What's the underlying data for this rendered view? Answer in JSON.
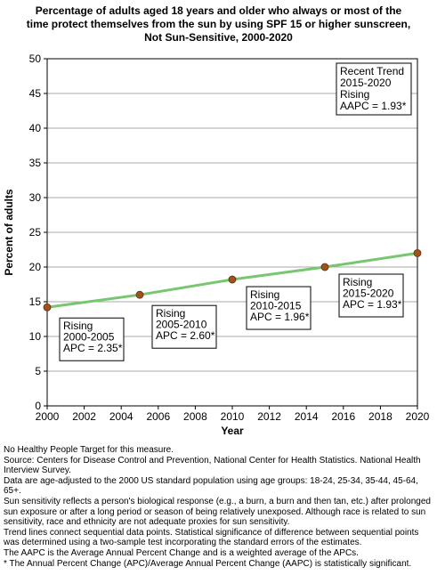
{
  "chart_data": {
    "type": "line",
    "title_lines": [
      "Percentage of adults aged 18 years and older who always or most of the",
      "time protect themselves from the sun by using SPF 15 or higher sunscreen,",
      "Not Sun-Sensitive,  2000-2020"
    ],
    "xlabel": "Year",
    "ylabel": "Percent of adults",
    "xlim": [
      2000,
      2020
    ],
    "ylim": [
      0,
      50
    ],
    "x_ticks": [
      "2000",
      "2002",
      "2004",
      "2006",
      "2008",
      "2010",
      "2012",
      "2014",
      "2016",
      "2018",
      "2020"
    ],
    "y_ticks": [
      "0",
      "5",
      "10",
      "15",
      "20",
      "25",
      "30",
      "35",
      "40",
      "45",
      "50"
    ],
    "grid": true,
    "trend_line_color": "#77c670",
    "marker_color": "#a0521c",
    "points": [
      {
        "x": 2000,
        "y": 14.2
      },
      {
        "x": 2005,
        "y": 16.0
      },
      {
        "x": 2010,
        "y": 18.2
      },
      {
        "x": 2015,
        "y": 20.0
      },
      {
        "x": 2020,
        "y": 22.0
      }
    ],
    "annotations": [
      {
        "lines": [
          "Rising",
          "2000-2005",
          "APC =  2.35*"
        ],
        "anchor_x": 2000,
        "anchor_y": 14.2
      },
      {
        "lines": [
          "Rising",
          "2005-2010",
          "APC =  2.60*"
        ],
        "anchor_x": 2005,
        "anchor_y": 16.0
      },
      {
        "lines": [
          "Rising",
          "2010-2015",
          "APC =  1.96*"
        ],
        "anchor_x": 2010,
        "anchor_y": 18.2
      },
      {
        "lines": [
          "Rising",
          "2015-2020",
          "APC =  1.93*"
        ],
        "anchor_x": 2015,
        "anchor_y": 20.0
      }
    ],
    "recent_trend": [
      "Recent Trend",
      "2015-2020",
      "Rising",
      "AAPC =  1.93*"
    ]
  },
  "notes": [
    "No Healthy People Target for this measure.",
    "Source: Centers for Disease Control and Prevention, National Center for Health Statistics. National Health Interview Survey.",
    "Data are age-adjusted to the 2000 US standard population using age groups: 18-24, 25-34, 35-44, 45-64, 65+.",
    "Sun sensitivity reflects a person's biological response (e.g., a burn, a burn and then tan, etc.) after prolonged sun exposure or after a long period or season of being relatively unexposed. Although race is related to sun sensitivity, race and ethnicity are not adequate proxies for sun sensitivity.",
    "Trend lines connect sequential data points. Statistical significance of difference between sequential points was determined using a two-sample test incorporating the standard errors of the estimates.",
    "The AAPC is the Average Annual Percent Change and is a weighted average of the APCs.",
    "* The Annual Percent Change (APC)/Average Annual Percent Change (AAPC) is statistically significant."
  ]
}
